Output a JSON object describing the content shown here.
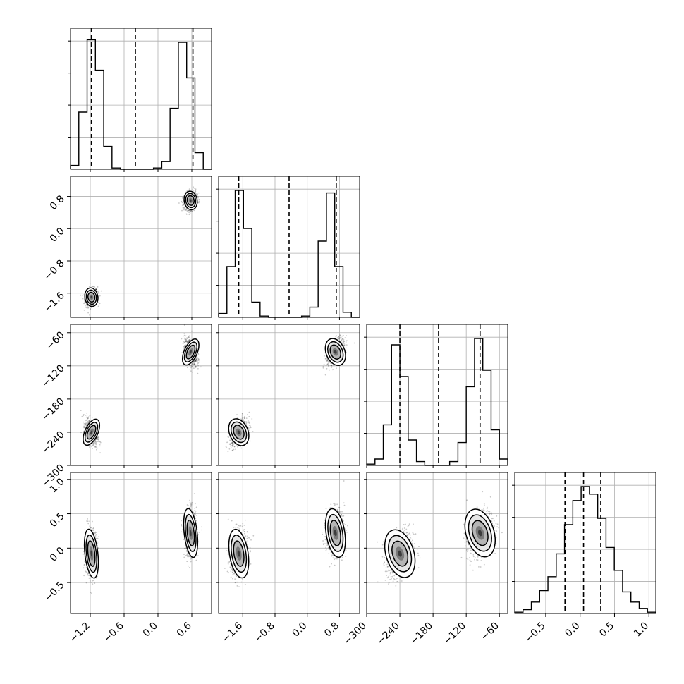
{
  "chart_data": {
    "type": "scatter",
    "description_kind": "corner",
    "grid": true,
    "params": [
      {
        "range": [
          -1.55,
          0.95
        ],
        "ticks": [
          -1.2,
          -0.6,
          0.0,
          0.6
        ],
        "tick_labels": [
          "−1.2",
          "−0.6",
          "0.0",
          "0.6"
        ],
        "quantiles": [
          -1.18,
          -0.4,
          0.62
        ],
        "hist_counts": [
          0.03,
          0.45,
          1.02,
          0.78,
          0.18,
          0.01,
          0,
          0,
          0,
          0,
          0.01,
          0.06,
          0.48,
          1.0,
          0.72,
          0.13,
          0
        ]
      },
      {
        "range": [
          -2.2,
          1.3
        ],
        "ticks": [
          -1.6,
          -0.8,
          0.0,
          0.8
        ],
        "tick_labels": [
          "−1.6",
          "−0.8",
          "0.0",
          "0.8"
        ],
        "quantiles": [
          -1.7,
          -0.45,
          0.72
        ],
        "hist_counts": [
          0.03,
          0.4,
          1.0,
          0.7,
          0.12,
          0.01,
          0,
          0,
          0,
          0,
          0.01,
          0.08,
          0.6,
          0.98,
          0.4,
          0.04,
          0
        ]
      },
      {
        "range": [
          -300,
          -45
        ],
        "ticks": [
          -300,
          -240,
          -180,
          -120,
          -60
        ],
        "tick_labels": [
          "−300",
          "−240",
          "−180",
          "−120",
          "−60"
        ],
        "quantiles": [
          -240,
          -170,
          -95
        ],
        "hist_counts": [
          0.01,
          0.05,
          0.32,
          0.95,
          0.7,
          0.2,
          0.03,
          0,
          0,
          0,
          0.03,
          0.18,
          0.62,
          1.0,
          0.75,
          0.28,
          0.05
        ]
      },
      {
        "range": [
          -0.95,
          1.1
        ],
        "ticks": [
          -0.5,
          0.0,
          0.5,
          1.0
        ],
        "tick_labels": [
          "−0.5",
          "0.0",
          "0.5",
          "1.0"
        ],
        "quantiles": [
          -0.22,
          0.05,
          0.3
        ],
        "hist_counts": [
          0.01,
          0.03,
          0.09,
          0.18,
          0.29,
          0.47,
          0.7,
          0.89,
          1.0,
          0.94,
          0.75,
          0.52,
          0.34,
          0.17,
          0.09,
          0.04,
          0.01
        ]
      }
    ],
    "modes": [
      {
        "mean": [
          -1.18,
          -1.7,
          -240,
          -0.08
        ],
        "sd": [
          0.055,
          0.11,
          12,
          0.17
        ],
        "weight": 0.5
      },
      {
        "mean": [
          0.58,
          0.7,
          -95,
          0.22
        ],
        "sd": [
          0.055,
          0.11,
          12,
          0.17
        ],
        "weight": 0.5
      }
    ],
    "correlations": {
      "1-0": 0.2,
      "2-0": -0.4,
      "2-1": 0.5,
      "3-0": 0.05,
      "3-1": 0.1,
      "3-2": 0.3
    }
  }
}
